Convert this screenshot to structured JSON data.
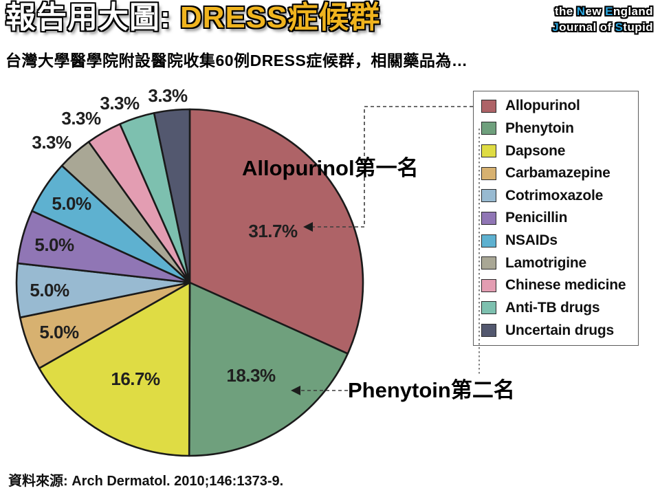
{
  "slide": {
    "title_prefix": "報告用大圖: ",
    "title_highlight": "DRESS症候群",
    "subtitle": "台灣大學醫學院附設醫院收集60例DRESS症候群，相關藥品為…",
    "source": "資料來源: Arch Dermatol. 2010;146:1373-9.",
    "colors": {
      "title_highlight": "#F0B41E",
      "logo_blue": "#2AA5DF",
      "background": "#FFFFFF"
    }
  },
  "logo": {
    "line1": "the New England",
    "line2": "Journal of Stupid"
  },
  "annotations": {
    "first": "Allopurinol第一名",
    "second": "Phenytoin第二名"
  },
  "chart_data": {
    "type": "pie",
    "title": "",
    "case_count_shown_in_subtitle": "60例",
    "labels": [
      "Allopurinol",
      "Phenytoin",
      "Dapsone",
      "Carbamazepine",
      "Cotrimoxazole",
      "Penicillin",
      "NSAIDs",
      "Lamotrigine",
      "Chinese medicine",
      "Anti-TB drugs",
      "Uncertain drugs"
    ],
    "values": [
      31.7,
      18.3,
      16.7,
      5.0,
      5.0,
      5.0,
      5.0,
      3.3,
      3.3,
      3.3,
      3.3
    ],
    "value_labels": [
      "31.7%",
      "18.3%",
      "16.7%",
      "5.0%",
      "5.0%",
      "5.0%",
      "5.0%",
      "3.3%",
      "3.3%",
      "3.3%",
      "3.3%"
    ],
    "colors": [
      "#AE6367",
      "#6FA07D",
      "#DFDC44",
      "#D7B170",
      "#98BAD1",
      "#9076B5",
      "#5EB1D0",
      "#A9A795",
      "#E39DB2",
      "#7DC0AF",
      "#53586F"
    ],
    "start_angle_deg": 0,
    "direction": "clockwise",
    "legend_position": "right",
    "grid": false
  }
}
